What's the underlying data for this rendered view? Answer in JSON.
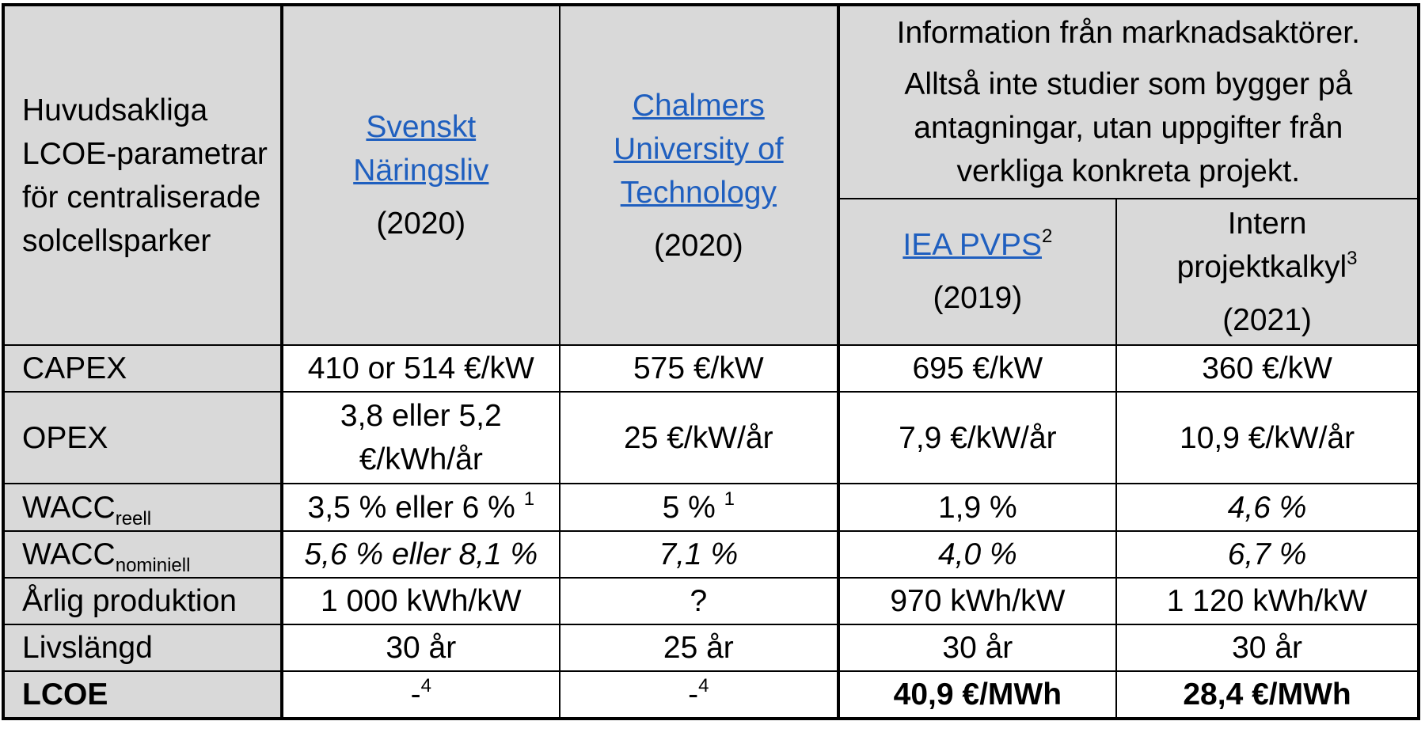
{
  "header": {
    "param_label": [
      "Huvudsakliga",
      "LCOE-parametrar",
      "för centraliserade",
      "solcellsparker"
    ],
    "col1": {
      "lines": [
        "Svenskt",
        "Näringsliv"
      ],
      "year": "(2020)"
    },
    "col2": {
      "lines": [
        "Chalmers",
        "University of",
        "Technology"
      ],
      "year": "(2020)"
    },
    "market": {
      "title": "Information från marknadsaktörer.",
      "subtitle": [
        "Alltså inte studier som bygger på",
        "antagningar, utan uppgifter från",
        "verkliga konkreta projekt."
      ]
    },
    "col3": {
      "name": "IEA PVPS",
      "sup": "2",
      "year": "(2019)"
    },
    "col4": {
      "line1": "Intern",
      "line2": "projektkalkyl",
      "sup": "3",
      "year": "(2021)"
    }
  },
  "rows": {
    "capex": {
      "label": "CAPEX",
      "v1": "410 or 514 €/kW",
      "v2": "575 €/kW",
      "v3": "695 €/kW",
      "v4": "360 €/kW"
    },
    "opex": {
      "label": "OPEX",
      "v1a": "3,8 eller 5,2",
      "v1b": "€/kWh/år",
      "v2": "25 €/kW/år",
      "v3": "7,9 €/kW/år",
      "v4": "10,9 €/kW/år"
    },
    "wacc_real": {
      "label": "WACC",
      "sub": "reell",
      "v1": "3,5 % eller 6 % ",
      "v1sup": "1",
      "v2": "5 % ",
      "v2sup": "1",
      "v3": "1,9 %",
      "v4": "4,6 %"
    },
    "wacc_nom": {
      "label": "WACC",
      "sub": "nominiell",
      "v1": "5,6 % eller 8,1 %",
      "v2": "7,1 %",
      "v3": "4,0 %",
      "v4": "6,7 %"
    },
    "production": {
      "label": "Årlig produktion",
      "v1": "1 000 kWh/kW",
      "v2": "?",
      "v3": "970 kWh/kW",
      "v4": "1 120 kWh/kW"
    },
    "lifetime": {
      "label": "Livslängd",
      "v1": "30 år",
      "v2": "25 år",
      "v3": "30 år",
      "v4": "30 år"
    },
    "lcoe": {
      "label": "LCOE",
      "v1": "-",
      "v1sup": "4",
      "v2": "-",
      "v2sup": "4",
      "v3": "40,9 €/MWh",
      "v4": "28,4 €/MWh"
    }
  }
}
